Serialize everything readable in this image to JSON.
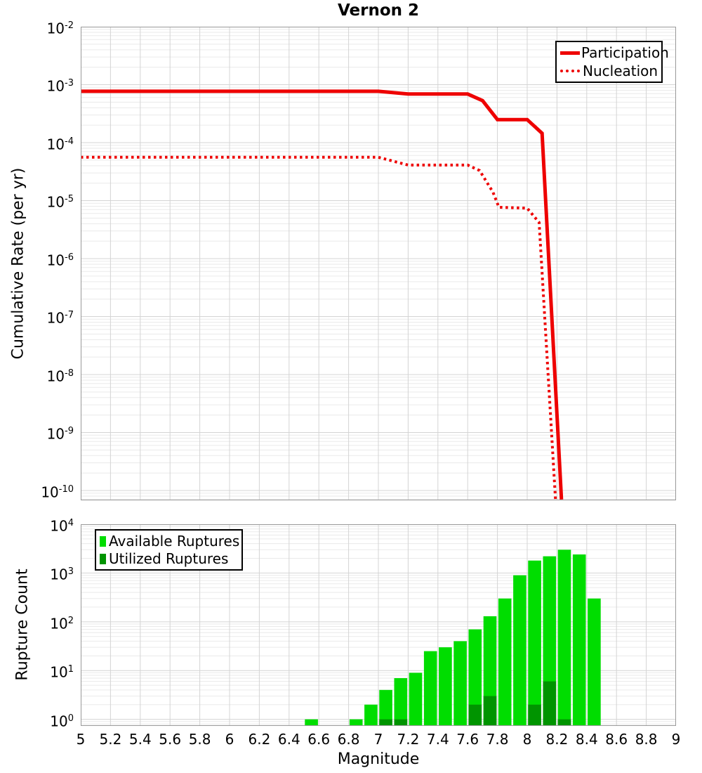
{
  "colors": {
    "curve_red": "#ee0000",
    "available_green": "#00dd00",
    "utilized_green": "#009400",
    "grid_major": "#d4d4d4",
    "grid_minor": "#eaeaea",
    "frame": "#999999",
    "legend_border": "#000000",
    "text": "#000000",
    "background": "#ffffff"
  },
  "top_chart": {
    "type": "line",
    "title": "Vernon 2",
    "ylabel": "Cumulative Rate (per yr)",
    "xlim": [
      5,
      9
    ],
    "ylim_log": [
      -10.17,
      -2
    ],
    "x_ticks": [
      "5",
      "5.2",
      "5.4",
      "5.6",
      "5.8",
      "6",
      "6.2",
      "6.4",
      "6.6",
      "6.8",
      "7",
      "7.2",
      "7.4",
      "7.6",
      "7.8",
      "8",
      "8.2",
      "8.4",
      "8.6",
      "8.8",
      "9"
    ],
    "y_ticks": [
      "10^-2",
      "10^-3",
      "10^-4",
      "10^-5",
      "10^-6",
      "10^-7",
      "10^-8",
      "10^-9",
      "10^-10"
    ],
    "legend_position": "top-right",
    "series": [
      {
        "name": "Participation",
        "style": "solid",
        "points": [
          [
            5.0,
            0.00077
          ],
          [
            7.0,
            0.00077
          ],
          [
            7.2,
            0.00069
          ],
          [
            7.6,
            0.00069
          ],
          [
            7.7,
            0.00053
          ],
          [
            7.8,
            0.00025
          ],
          [
            8.0,
            0.00025
          ],
          [
            8.1,
            0.000145
          ],
          [
            8.23,
            7e-11
          ]
        ]
      },
      {
        "name": "Nucleation",
        "style": "dotted",
        "points": [
          [
            5.0,
            5.6e-05
          ],
          [
            7.0,
            5.6e-05
          ],
          [
            7.2,
            4.1e-05
          ],
          [
            7.6,
            4.1e-05
          ],
          [
            7.68,
            3.3e-05
          ],
          [
            7.77,
            1.4e-05
          ],
          [
            7.81,
            7.7e-06
          ],
          [
            8.0,
            7.4e-06
          ],
          [
            8.08,
            4.2e-06
          ],
          [
            8.19,
            7e-11
          ]
        ]
      }
    ]
  },
  "bottom_chart": {
    "type": "bar",
    "ylabel": "Rupture Count",
    "xlabel": "Magnitude",
    "xlim": [
      5,
      9
    ],
    "ylim_log": [
      -0.135,
      4
    ],
    "bin_width": 0.1,
    "x_ticks": [
      "5",
      "5.2",
      "5.4",
      "5.6",
      "5.8",
      "6",
      "6.2",
      "6.4",
      "6.6",
      "6.8",
      "7",
      "7.2",
      "7.4",
      "7.6",
      "7.8",
      "8",
      "8.2",
      "8.4",
      "8.6",
      "8.8",
      "9"
    ],
    "y_ticks": [
      "10^4",
      "10^3",
      "10^2",
      "10^1",
      "10^0"
    ],
    "legend_position": "top-left",
    "categories": [
      6.55,
      6.65,
      6.75,
      6.85,
      6.95,
      7.05,
      7.15,
      7.25,
      7.35,
      7.45,
      7.55,
      7.65,
      7.75,
      7.85,
      7.95,
      8.05,
      8.15,
      8.25,
      8.35,
      8.45
    ],
    "series": [
      {
        "name": "Available Ruptures",
        "values": [
          1,
          0,
          0,
          1,
          2,
          4,
          7,
          9,
          25,
          30,
          40,
          70,
          130,
          300,
          900,
          1800,
          2200,
          3000,
          2400,
          300
        ]
      },
      {
        "name": "Utilized Ruptures",
        "values": [
          0,
          0,
          0,
          0,
          0,
          1,
          1,
          0,
          0,
          0,
          0,
          2,
          3,
          0,
          0,
          2,
          6,
          1,
          0,
          0
        ]
      }
    ]
  }
}
